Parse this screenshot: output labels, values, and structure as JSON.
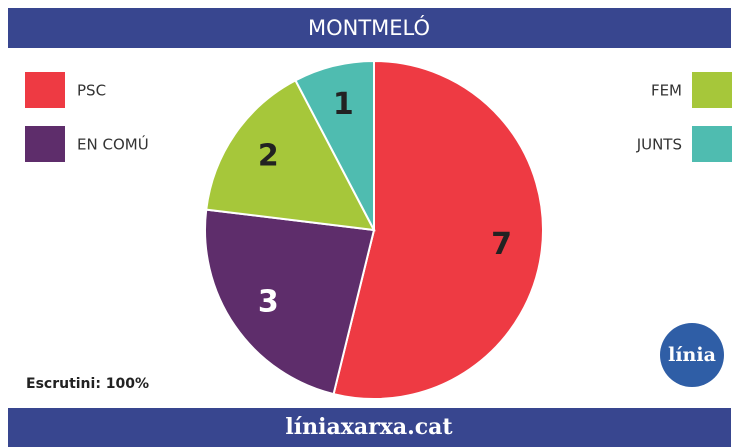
{
  "chart_data": {
    "type": "pie",
    "title": "MONTMELÓ",
    "categories": [
      "PSC",
      "EN COMÚ",
      "FEM",
      "JUNTS"
    ],
    "values": [
      7,
      3,
      2,
      1
    ],
    "colors": [
      "#ee3a43",
      "#5e2d6b",
      "#a6c73a",
      "#4fbcb0"
    ],
    "note": "Escrutini: 100%",
    "logo": "línia",
    "footer": "líniaxarxa.cat"
  }
}
